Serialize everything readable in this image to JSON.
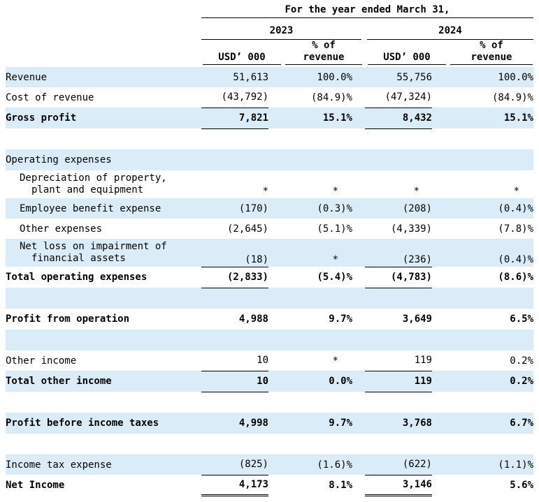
{
  "header": {
    "period": "For the year ended March  31,",
    "years": [
      "2023",
      "2024"
    ],
    "col_usd": "USD’ 000",
    "col_pct_line1": "% of",
    "col_pct_line2": "revenue"
  },
  "rows": [
    {
      "label": "Revenue",
      "v2023": "51,613",
      "p2023": "100.0%",
      "v2024": "55,756",
      "p2024": "100.0%"
    },
    {
      "label": "Cost of revenue",
      "v2023": "(43,792)",
      "p2023": "(84.9)%",
      "v2024": "(47,324)",
      "p2024": "(84.9)%"
    },
    {
      "label": "Gross profit",
      "v2023": "7,821",
      "p2023": "15.1%",
      "v2024": "8,432",
      "p2024": "15.1%"
    },
    {
      "label": "Operating expenses"
    },
    {
      "label1": "Depreciation of property,",
      "label2": "plant and equipment",
      "v2023": "*",
      "p2023": "*",
      "v2024": "*",
      "p2024": "*"
    },
    {
      "label": "Employee benefit expense",
      "v2023": "(170)",
      "p2023": "(0.3)%",
      "v2024": "(208)",
      "p2024": "(0.4)%"
    },
    {
      "label": "Other expenses",
      "v2023": "(2,645)",
      "p2023": "(5.1)%",
      "v2024": "(4,339)",
      "p2024": "(7.8)%"
    },
    {
      "label1": "Net loss on impairment of",
      "label2": "financial assets",
      "v2023": "(18)",
      "p2023": "*",
      "v2024": "(236)",
      "p2024": "(0.4)%"
    },
    {
      "label": "Total operating expenses",
      "v2023": "(2,833)",
      "p2023": "(5.4)%",
      "v2024": "(4,783)",
      "p2024": "(8.6)%"
    },
    {
      "label": "Profit from operation",
      "v2023": "4,988",
      "p2023": "9.7%",
      "v2024": "3,649",
      "p2024": "6.5%"
    },
    {
      "label": "Other income",
      "v2023": "10",
      "p2023": "*",
      "v2024": "119",
      "p2024": "0.2%"
    },
    {
      "label": "Total other income",
      "v2023": "10",
      "p2023": "0.0%",
      "v2024": "119",
      "p2024": "0.2%"
    },
    {
      "label": "Profit before income taxes",
      "v2023": "4,998",
      "p2023": "9.7%",
      "v2024": "3,768",
      "p2024": "6.7%"
    },
    {
      "label": "Income tax expense",
      "v2023": "(825)",
      "p2023": "(1.6)%",
      "v2024": "(622)",
      "p2024": "(1.1)%"
    },
    {
      "label": "Net Income",
      "v2023": "4,173",
      "p2023": "8.1%",
      "v2024": "3,146",
      "p2024": "5.6%"
    }
  ]
}
